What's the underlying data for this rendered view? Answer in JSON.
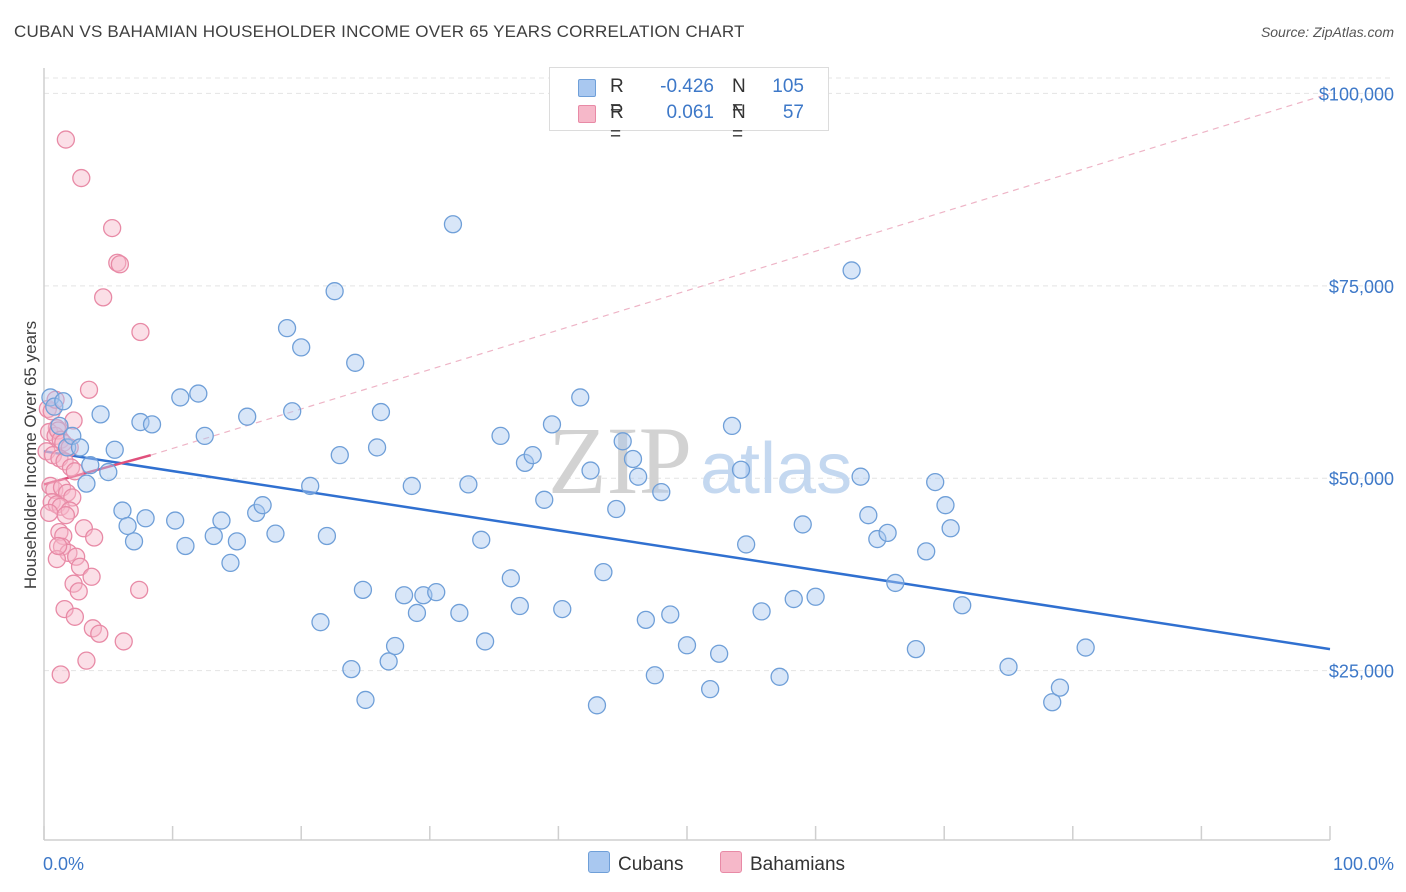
{
  "title": "CUBAN VS BAHAMIAN HOUSEHOLDER INCOME OVER 65 YEARS CORRELATION CHART",
  "source": "Source: ZipAtlas.com",
  "watermark": {
    "zip": "ZIP",
    "atlas": "atlas"
  },
  "colors": {
    "cubans_fill": "#a9c8f0",
    "cubans_stroke": "#6f9fd8",
    "cubans_line": "#3070d0",
    "bahamians_fill": "#f6b8c9",
    "bahamians_stroke": "#e88aa6",
    "bahamians_line": "#e0507c",
    "grid": "#e4e4e4",
    "accent_text": "#3d78c8"
  },
  "legend": {
    "rows": [
      {
        "series": "Cubans",
        "r_label": "R =",
        "r_value": "-0.426",
        "n_label": "N =",
        "n_value": "105"
      },
      {
        "series": "Bahamians",
        "r_label": "R =",
        "r_value": "0.061",
        "n_label": "N =",
        "n_value": "57"
      }
    ]
  },
  "bottom_legend": {
    "cubans": "Cubans",
    "bahamians": "Bahamians"
  },
  "chart_data": {
    "type": "scatter",
    "title": "CUBAN VS BAHAMIAN HOUSEHOLDER INCOME OVER 65 YEARS CORRELATION CHART",
    "xlabel": "",
    "ylabel": "Householder Income Over 65 years",
    "x_tick_labels": [
      "0.0%",
      "100.0%"
    ],
    "y_tick_labels": [
      "$25,000",
      "$50,000",
      "$75,000",
      "$100,000"
    ],
    "y_ticks": [
      25000,
      50000,
      75000,
      100000
    ],
    "xlim": [
      0,
      100
    ],
    "ylim": [
      3000,
      102000
    ],
    "grid": true,
    "series": [
      {
        "name": "Cubans",
        "trend": {
          "x0": 0,
          "y0": 53500,
          "x1": 100,
          "y1": 27800
        },
        "points": [
          [
            0.5,
            60.5
          ],
          [
            0.8,
            59.3
          ],
          [
            1.2,
            56.8
          ],
          [
            1.5,
            60
          ],
          [
            1.8,
            54
          ],
          [
            2.2,
            55.5
          ],
          [
            2.8,
            54
          ],
          [
            3.3,
            49.3
          ],
          [
            3.6,
            51.7
          ],
          [
            4.4,
            58.3
          ],
          [
            5.0,
            50.8
          ],
          [
            5.5,
            53.7
          ],
          [
            6.1,
            45.8
          ],
          [
            6.5,
            43.8
          ],
          [
            7.0,
            41.8
          ],
          [
            7.5,
            57.3
          ],
          [
            7.9,
            44.8
          ],
          [
            8.4,
            57
          ],
          [
            10.2,
            44.5
          ],
          [
            10.6,
            60.5
          ],
          [
            11.0,
            41.2
          ],
          [
            12.0,
            61
          ],
          [
            12.5,
            55.5
          ],
          [
            13.2,
            42.5
          ],
          [
            13.8,
            44.5
          ],
          [
            14.5,
            39
          ],
          [
            15.0,
            41.8
          ],
          [
            15.8,
            58
          ],
          [
            16.5,
            45.5
          ],
          [
            17.0,
            46.5
          ],
          [
            18.0,
            42.8
          ],
          [
            18.9,
            69.5
          ],
          [
            19.3,
            58.7
          ],
          [
            20.0,
            67
          ],
          [
            20.7,
            49
          ],
          [
            21.5,
            31.3
          ],
          [
            22.0,
            42.5
          ],
          [
            22.6,
            74.3
          ],
          [
            23.0,
            53
          ],
          [
            23.9,
            25.2
          ],
          [
            24.2,
            65
          ],
          [
            24.8,
            35.5
          ],
          [
            25.0,
            21.2
          ],
          [
            25.9,
            54
          ],
          [
            26.2,
            58.6
          ],
          [
            26.8,
            26.2
          ],
          [
            27.3,
            28.2
          ],
          [
            28.0,
            34.8
          ],
          [
            28.6,
            49
          ],
          [
            29.0,
            32.5
          ],
          [
            29.5,
            34.8
          ],
          [
            30.5,
            35.2
          ],
          [
            31.8,
            83
          ],
          [
            32.3,
            32.5
          ],
          [
            33.0,
            49.2
          ],
          [
            34.0,
            42
          ],
          [
            34.3,
            28.8
          ],
          [
            35.5,
            55.5
          ],
          [
            36.3,
            37
          ],
          [
            37.0,
            33.4
          ],
          [
            37.4,
            52
          ],
          [
            38.0,
            53
          ],
          [
            38.9,
            47.2
          ],
          [
            39.5,
            57
          ],
          [
            40.3,
            33
          ],
          [
            41.7,
            60.5
          ],
          [
            42.5,
            51
          ],
          [
            43.0,
            20.5
          ],
          [
            43.5,
            37.8
          ],
          [
            44.5,
            46
          ],
          [
            45.0,
            54.8
          ],
          [
            45.8,
            52.5
          ],
          [
            46.2,
            50.2
          ],
          [
            46.8,
            31.6
          ],
          [
            47.5,
            24.4
          ],
          [
            48.0,
            48.2
          ],
          [
            48.7,
            32.3
          ],
          [
            50.0,
            28.3
          ],
          [
            51.8,
            22.6
          ],
          [
            52.5,
            27.2
          ],
          [
            53.5,
            56.8
          ],
          [
            54.2,
            51.1
          ],
          [
            54.6,
            41.4
          ],
          [
            55.8,
            32.7
          ],
          [
            57.2,
            24.2
          ],
          [
            58.3,
            34.3
          ],
          [
            59.0,
            44
          ],
          [
            60.0,
            34.6
          ],
          [
            62.8,
            77
          ],
          [
            63.5,
            50.2
          ],
          [
            64.1,
            45.2
          ],
          [
            64.8,
            42.1
          ],
          [
            65.6,
            42.9
          ],
          [
            66.2,
            36.4
          ],
          [
            67.8,
            27.8
          ],
          [
            68.6,
            40.5
          ],
          [
            69.3,
            49.5
          ],
          [
            70.1,
            46.5
          ],
          [
            70.5,
            43.5
          ],
          [
            71.4,
            33.5
          ],
          [
            75.0,
            25.5
          ],
          [
            78.4,
            20.9
          ],
          [
            79.0,
            22.8
          ],
          [
            81.0,
            28
          ]
        ]
      },
      {
        "name": "Bahamians",
        "trend": {
          "x0": 0,
          "y0": 49200,
          "x1": 8.3,
          "y1": 53000
        },
        "trend_extension": {
          "x0": 8.3,
          "y0": 53000,
          "x1": 100,
          "y1": 100000
        },
        "points": [
          [
            1.7,
            94
          ],
          [
            2.9,
            89
          ],
          [
            5.3,
            82.5
          ],
          [
            5.7,
            78
          ],
          [
            5.9,
            77.8
          ],
          [
            4.6,
            73.5
          ],
          [
            7.5,
            69
          ],
          [
            3.5,
            61.5
          ],
          [
            0.3,
            59
          ],
          [
            0.6,
            58.7
          ],
          [
            1.0,
            56.5
          ],
          [
            0.4,
            56
          ],
          [
            0.9,
            55.5
          ],
          [
            1.1,
            56.2
          ],
          [
            1.3,
            55
          ],
          [
            1.5,
            54.6
          ],
          [
            2.0,
            54
          ],
          [
            2.3,
            57.5
          ],
          [
            0.2,
            53.5
          ],
          [
            0.7,
            53
          ],
          [
            1.2,
            52.6
          ],
          [
            1.6,
            52.2
          ],
          [
            2.1,
            51.4
          ],
          [
            2.4,
            50.9
          ],
          [
            0.5,
            49
          ],
          [
            0.8,
            48.5
          ],
          [
            1.4,
            48.8
          ],
          [
            1.8,
            48.1
          ],
          [
            2.2,
            47.5
          ],
          [
            0.6,
            46.9
          ],
          [
            1.0,
            46.6
          ],
          [
            1.3,
            46.3
          ],
          [
            2.0,
            45.8
          ],
          [
            0.4,
            45.5
          ],
          [
            1.7,
            45.2
          ],
          [
            3.1,
            43.5
          ],
          [
            1.2,
            43
          ],
          [
            1.5,
            42.5
          ],
          [
            3.9,
            42.3
          ],
          [
            1.4,
            41.1
          ],
          [
            1.9,
            40.3
          ],
          [
            2.5,
            39.8
          ],
          [
            1.0,
            39.5
          ],
          [
            2.8,
            38.5
          ],
          [
            3.7,
            37.2
          ],
          [
            2.3,
            36.3
          ],
          [
            2.7,
            35.3
          ],
          [
            7.4,
            35.5
          ],
          [
            1.6,
            33
          ],
          [
            2.4,
            32
          ],
          [
            3.8,
            30.5
          ],
          [
            4.3,
            29.8
          ],
          [
            6.2,
            28.8
          ],
          [
            3.3,
            26.3
          ],
          [
            1.3,
            24.5
          ],
          [
            0.9,
            60.2
          ],
          [
            1.1,
            41.2
          ]
        ]
      }
    ]
  }
}
